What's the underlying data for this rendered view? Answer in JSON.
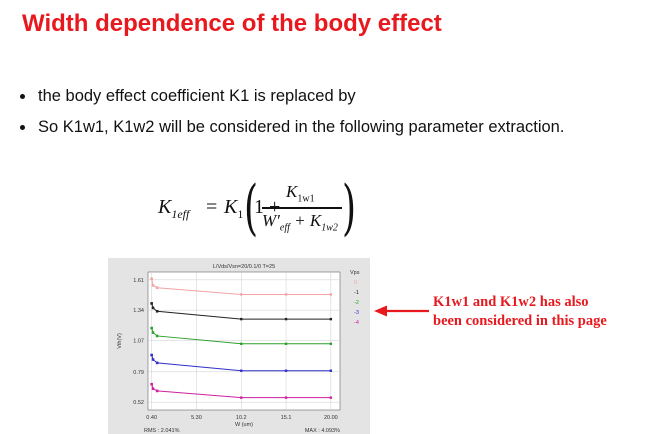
{
  "title": "Width dependence of the body effect",
  "bullets": [
    "the body effect coefficient K1 is replaced by",
    "So K1w1, K1w2 will be considered in the following parameter extraction."
  ],
  "formula": {
    "lhs": "K",
    "lhs_sub": "1eff",
    "k1": "K",
    "k1_sub": "1",
    "one_plus": "1 +",
    "numerator": "K",
    "numerator_sub": "1w1",
    "den_w": "W",
    "den_w_sub": "eff",
    "den_plus": "+ K",
    "den_k_sub": "1w2"
  },
  "annotation": {
    "line1": "K1w1 and K1w2 has also",
    "line2": "been considered in this page",
    "color": "#e8191e"
  },
  "chart_data": {
    "type": "line",
    "title": "L/Vds/Vsn=20/0.1/0   T=25",
    "xlabel": "W (um)",
    "ylabel": "Vth(V)",
    "x_ticks": [
      "0.40",
      "5.30",
      "10.2",
      "15.1",
      "20.00"
    ],
    "y_ticks": [
      "1.61",
      "1.34",
      "1.07",
      "0.79",
      "0.52"
    ],
    "xlim": [
      0,
      21
    ],
    "ylim": [
      0.45,
      1.68
    ],
    "legend_title": "Vps",
    "footer_left": "RMS : 2.041%",
    "footer_right": "MAX : 4.093%",
    "x": [
      0.4,
      0.55,
      1.0,
      10.2,
      15.1,
      20.0
    ],
    "series": [
      {
        "name": "0",
        "color": "#f4a4a4",
        "values": [
          1.62,
          1.56,
          1.54,
          1.48,
          1.48,
          1.48
        ]
      },
      {
        "name": "-1",
        "color": "#222222",
        "values": [
          1.4,
          1.36,
          1.33,
          1.26,
          1.26,
          1.26
        ]
      },
      {
        "name": "-2",
        "color": "#2ea02e",
        "values": [
          1.18,
          1.14,
          1.11,
          1.04,
          1.04,
          1.04
        ]
      },
      {
        "name": "-3",
        "color": "#3030c8",
        "values": [
          0.94,
          0.9,
          0.87,
          0.8,
          0.8,
          0.8
        ]
      },
      {
        "name": "-4",
        "color": "#d020a0",
        "values": [
          0.68,
          0.64,
          0.62,
          0.56,
          0.56,
          0.56
        ]
      }
    ]
  }
}
